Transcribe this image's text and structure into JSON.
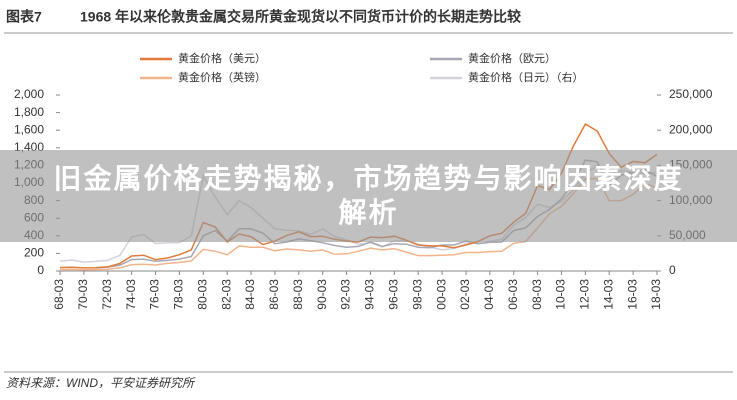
{
  "chart_data": {
    "type": "line",
    "figure_label": "图表7",
    "title": "1968 年以来伦敦贵金属交易所黄金现货以不同货币计价的长期走势比较",
    "source": "资料来源：WIND，平安证券研究所",
    "categories": [
      "68-03",
      null,
      "70-03",
      null,
      "72-03",
      null,
      "74-03",
      null,
      "76-03",
      null,
      "78-03",
      null,
      "80-03",
      null,
      "82-03",
      null,
      "84-03",
      null,
      "86-03",
      null,
      "88-03",
      null,
      "90-03",
      null,
      "92-03",
      null,
      "94-03",
      null,
      "96-03",
      null,
      "98-03",
      null,
      "00-03",
      null,
      "02-03",
      null,
      "04-03",
      null,
      "06-03",
      null,
      "08-03",
      null,
      "10-03",
      null,
      "12-03",
      null,
      "14-03",
      null,
      "16-03",
      null,
      "18-03"
    ],
    "series": [
      {
        "name": "黄金价格（美元）",
        "color": "#e07b39",
        "values": [
          40,
          43,
          35,
          38,
          48,
          85,
          170,
          180,
          130,
          148,
          185,
          240,
          550,
          500,
          330,
          420,
          390,
          300,
          340,
          405,
          445,
          390,
          395,
          360,
          340,
          330,
          385,
          380,
          395,
          350,
          295,
          285,
          285,
          265,
          295,
          335,
          400,
          430,
          555,
          655,
          970,
          925,
          1110,
          1420,
          1670,
          1590,
          1335,
          1180,
          1245,
          1230,
          1325
        ]
      },
      {
        "name": "黄金价格（欧元）",
        "color": "#a8a8b4",
        "values": [
          null,
          null,
          null,
          35,
          44,
          65,
          130,
          135,
          110,
          120,
          135,
          165,
          400,
          460,
          340,
          480,
          480,
          430,
          310,
          330,
          365,
          345,
          320,
          290,
          270,
          280,
          330,
          280,
          310,
          305,
          270,
          265,
          295,
          295,
          340,
          310,
          325,
          330,
          460,
          490,
          620,
          700,
          820,
          1010,
          1260,
          1240,
          970,
          1090,
          1120,
          1150,
          1075
        ]
      },
      {
        "name": "黄金价格（英镑）",
        "color": "#f2b48a",
        "values": [
          17,
          18,
          15,
          16,
          19,
          35,
          72,
          76,
          68,
          86,
          97,
          115,
          245,
          225,
          185,
          285,
          270,
          270,
          230,
          250,
          240,
          225,
          240,
          190,
          195,
          225,
          260,
          240,
          255,
          215,
          175,
          175,
          180,
          185,
          210,
          210,
          220,
          225,
          315,
          335,
          490,
          650,
          735,
          880,
          1050,
          1050,
          800,
          800,
          870,
          990,
          950
        ]
      },
      {
        "name": "黄金价格（日元）（右）",
        "color": "#d2d2da",
        "axis": "y2",
        "values": [
          14000,
          15500,
          12600,
          13700,
          15000,
          22000,
          48000,
          52000,
          39000,
          40000,
          40000,
          50000,
          135000,
          105000,
          80000,
          100000,
          90000,
          75000,
          60000,
          58000,
          57000,
          52000,
          60000,
          49000,
          44000,
          38000,
          40000,
          34000,
          43000,
          43000,
          38000,
          34000,
          30000,
          32000,
          39000,
          40000,
          42000,
          45000,
          65000,
          76000,
          95000,
          90000,
          99000,
          115000,
          138000,
          150000,
          138000,
          142000,
          140000,
          138000,
          140000
        ]
      }
    ],
    "ylim": [
      0,
      2000
    ],
    "yticks": [
      0,
      200,
      400,
      600,
      800,
      {
        "value": 1000,
        "label": "1,000"
      },
      {
        "value": 1200,
        "label": "1,200"
      },
      {
        "value": 1400,
        "label": "1,400"
      },
      {
        "value": 1600,
        "label": "1,600"
      },
      {
        "value": 1800,
        "label": "1,800"
      },
      {
        "value": 2000,
        "label": "2,000"
      }
    ],
    "y2lim": [
      0,
      250000
    ],
    "y2ticks": [
      0,
      {
        "value": 50000,
        "label": "50,000"
      },
      {
        "value": 100000,
        "label": "100,000"
      },
      {
        "value": 150000,
        "label": "150,000"
      },
      {
        "value": 200000,
        "label": "200,000"
      },
      {
        "value": 250000,
        "label": "250,000"
      }
    ],
    "grid": false
  },
  "banner": {
    "text": "旧金属价格走势揭秘，市场趋势与影响因素深度解析"
  }
}
